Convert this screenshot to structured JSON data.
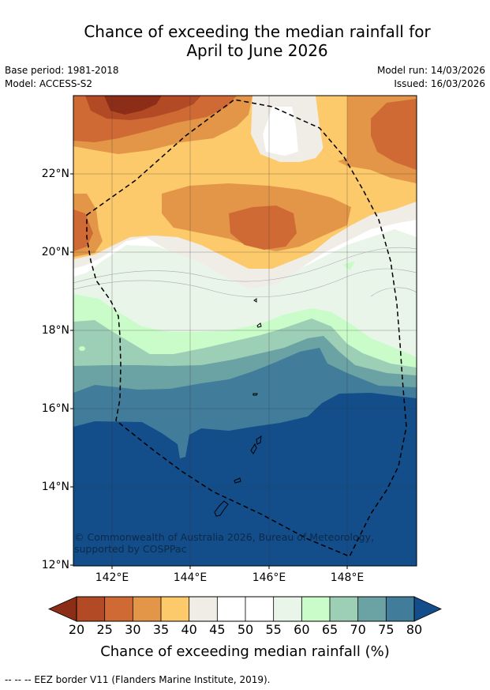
{
  "title": {
    "line1": "Chance of exceeding the median rainfall for",
    "line2": "April to June 2026"
  },
  "meta": {
    "base_period": "Base period: 1981-2018",
    "model": "Model: ACCESS-S2",
    "model_run": "Model run: 14/03/2026",
    "issued": "Issued: 16/03/2026"
  },
  "map": {
    "lat_labels": [
      "22°N",
      "20°N",
      "18°N",
      "16°N",
      "14°N",
      "12°N"
    ],
    "lon_labels": [
      "142°E",
      "144°E",
      "146°E",
      "148°E"
    ],
    "credit": "© Commonwealth of Australia 2026, Bureau of Meteorology, supported by COSPPac"
  },
  "colorbar": {
    "ticks": [
      "20",
      "25",
      "30",
      "35",
      "40",
      "45",
      "50",
      "55",
      "60",
      "65",
      "70",
      "75",
      "80"
    ],
    "label": "Chance of exceeding median rainfall (%)",
    "colors": {
      "below_20": "#8c2d17",
      "20_25": "#b24a25",
      "25_30": "#cf6a35",
      "30_35": "#e39548",
      "35_40": "#fcc96b",
      "40_45": "#f0ece6",
      "45_50": "#ffffff",
      "50_55": "#ffffff",
      "55_60": "#e9f5e8",
      "60_65": "#c9fcc9",
      "65_70": "#9dcfb6",
      "70_75": "#6ba2a3",
      "75_80": "#417c9b",
      "above_80": "#134d8a"
    }
  },
  "footnote": "--  --  -- EEZ border V11 (Flanders Marine Institute, 2019)."
}
